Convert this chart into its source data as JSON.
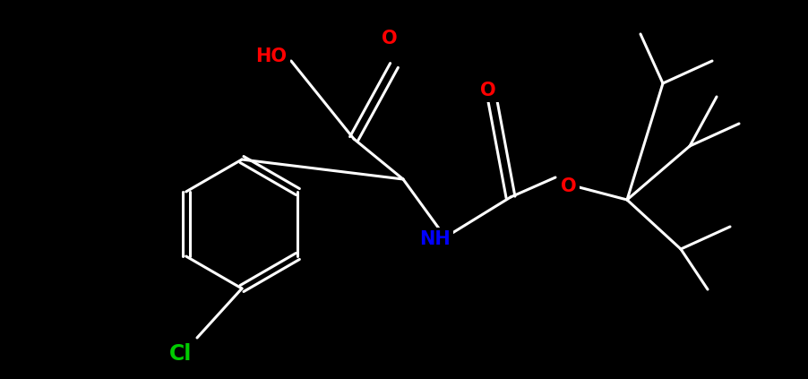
{
  "background_color": "#000000",
  "bond_color": "#ffffff",
  "atom_colors": {
    "O": "#ff0000",
    "N": "#0000ff",
    "Cl": "#00cc00",
    "C": "#ffffff",
    "H": "#ffffff"
  },
  "bond_width": 2.2,
  "font_size": 15
}
